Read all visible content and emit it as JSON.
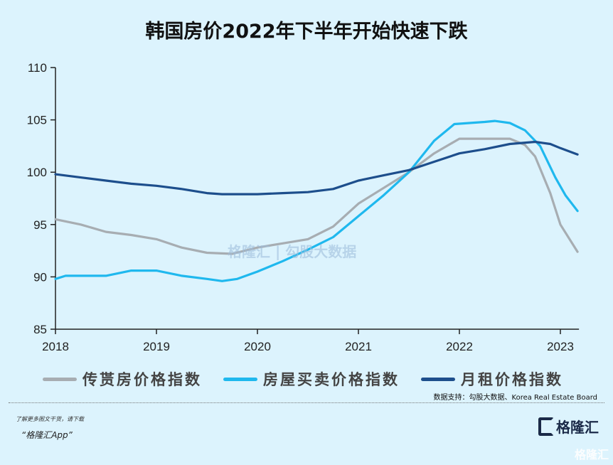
{
  "chart_data": {
    "type": "line",
    "title": "韩国房价2022年下半年开始快速下跌",
    "xlabel": "",
    "ylabel": "",
    "xlim": [
      2018,
      2023.17
    ],
    "ylim": [
      85,
      110
    ],
    "x_ticks": [
      "2018",
      "2019",
      "2020",
      "2021",
      "2022",
      "2023"
    ],
    "y_ticks": [
      "85",
      "90",
      "95",
      "100",
      "105",
      "110"
    ],
    "grid": false,
    "legend_position": "bottom",
    "series": [
      {
        "name": "传贳房价格指数",
        "color": "#a7adb2",
        "points": [
          [
            2018,
            95.5
          ],
          [
            2018.25,
            95
          ],
          [
            2018.5,
            94.3
          ],
          [
            2018.75,
            94
          ],
          [
            2019,
            93.6
          ],
          [
            2019.25,
            92.8
          ],
          [
            2019.5,
            92.3
          ],
          [
            2019.75,
            92.2
          ],
          [
            2020,
            92.8
          ],
          [
            2020.25,
            93.2
          ],
          [
            2020.5,
            93.6
          ],
          [
            2020.75,
            94.8
          ],
          [
            2021,
            97
          ],
          [
            2021.25,
            98.5
          ],
          [
            2021.5,
            100
          ],
          [
            2021.75,
            101.8
          ],
          [
            2022,
            103.2
          ],
          [
            2022.25,
            103.2
          ],
          [
            2022.5,
            103.2
          ],
          [
            2022.65,
            102.6
          ],
          [
            2022.75,
            101.5
          ],
          [
            2022.9,
            98
          ],
          [
            2023,
            95
          ],
          [
            2023.17,
            92.4
          ]
        ]
      },
      {
        "name": "房屋买卖价格指数",
        "color": "#1fb8ee",
        "points": [
          [
            2018,
            89.8
          ],
          [
            2018.1,
            90.1
          ],
          [
            2018.5,
            90.1
          ],
          [
            2018.75,
            90.6
          ],
          [
            2019,
            90.6
          ],
          [
            2019.25,
            90.1
          ],
          [
            2019.5,
            89.8
          ],
          [
            2019.65,
            89.6
          ],
          [
            2019.8,
            89.8
          ],
          [
            2020,
            90.5
          ],
          [
            2020.25,
            91.5
          ],
          [
            2020.5,
            92.6
          ],
          [
            2020.75,
            93.8
          ],
          [
            2021,
            95.8
          ],
          [
            2021.25,
            97.8
          ],
          [
            2021.5,
            100
          ],
          [
            2021.75,
            103
          ],
          [
            2021.95,
            104.6
          ],
          [
            2022.25,
            104.8
          ],
          [
            2022.35,
            104.9
          ],
          [
            2022.5,
            104.7
          ],
          [
            2022.65,
            104
          ],
          [
            2022.8,
            102.5
          ],
          [
            2022.95,
            99.5
          ],
          [
            2023.05,
            97.8
          ],
          [
            2023.17,
            96.3
          ]
        ]
      },
      {
        "name": "月租价格指数",
        "color": "#1d4e8c",
        "points": [
          [
            2018,
            99.8
          ],
          [
            2018.25,
            99.5
          ],
          [
            2018.5,
            99.2
          ],
          [
            2018.75,
            98.9
          ],
          [
            2019,
            98.7
          ],
          [
            2019.25,
            98.4
          ],
          [
            2019.5,
            98
          ],
          [
            2019.65,
            97.9
          ],
          [
            2020,
            97.9
          ],
          [
            2020.25,
            98
          ],
          [
            2020.5,
            98.1
          ],
          [
            2020.75,
            98.4
          ],
          [
            2021,
            99.2
          ],
          [
            2021.25,
            99.7
          ],
          [
            2021.5,
            100.2
          ],
          [
            2021.75,
            101
          ],
          [
            2022,
            101.8
          ],
          [
            2022.25,
            102.2
          ],
          [
            2022.5,
            102.7
          ],
          [
            2022.75,
            102.9
          ],
          [
            2022.9,
            102.7
          ],
          [
            2023,
            102.3
          ],
          [
            2023.17,
            101.7
          ]
        ]
      }
    ]
  },
  "source": "数据支持：勾股大数据、Korea Real Estate Board",
  "promo": {
    "line1": "了解更多图文干货，请下载",
    "line2": "“格隆汇App”"
  },
  "logo": "格隆汇",
  "watermark": "格隆汇",
  "chart_watermark": "格隆汇 | 勾股大数据"
}
